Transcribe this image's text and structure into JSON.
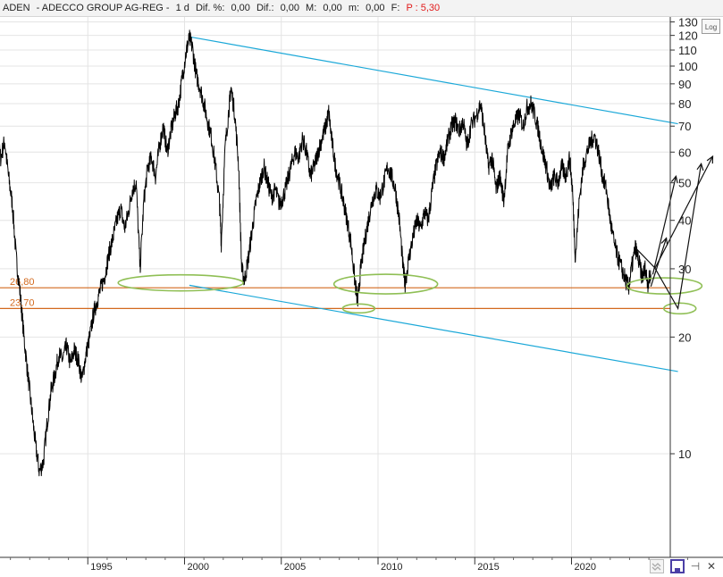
{
  "header": {
    "symbol": "ADEN",
    "name": "- ADECCO GROUP AG-REG -",
    "period": "1 d",
    "pct_change_label": "Dif. %:",
    "pct_change_value": "0,00",
    "change_label": "Dif.:",
    "change_value": "0,00",
    "max_label": "M:",
    "max_value": "0,00",
    "min_label": "m:",
    "min_value": "0,00",
    "f_label": "F:",
    "price_text": "P : 5,30"
  },
  "toolbar": {
    "log_label": "Log"
  },
  "bottom_tools": {
    "zoom_icon": "zoom-icon",
    "save_icon": "save-icon",
    "pin_icon": "pin-icon",
    "close_icon": "close-icon"
  },
  "colors": {
    "price": "#000000",
    "trendline": "#1ba8d8",
    "support": "#d2691e",
    "ellipse": "#8fbf55",
    "label_bg": "#ffffff",
    "grid": "#e4e4e4"
  },
  "chart_data": {
    "type": "line",
    "y_scale": "log",
    "y_ticks": [
      10,
      20,
      30,
      40,
      50,
      60,
      70,
      80,
      90,
      100,
      110,
      120,
      130
    ],
    "x_ticks": [
      "1995",
      "2000",
      "2005",
      "2010",
      "2015",
      "2020"
    ],
    "grid": true,
    "series": [
      {
        "points": [
          [
            1989.9,
            68
          ],
          [
            1990.1,
            62
          ],
          [
            1990.3,
            65
          ],
          [
            1990.5,
            58
          ],
          [
            1990.7,
            64
          ],
          [
            1990.9,
            52
          ],
          [
            1991.1,
            44
          ],
          [
            1991.3,
            32
          ],
          [
            1991.5,
            26
          ],
          [
            1991.7,
            20
          ],
          [
            1991.9,
            16
          ],
          [
            1992.1,
            13
          ],
          [
            1992.3,
            10.5
          ],
          [
            1992.5,
            9
          ],
          [
            1992.7,
            9.5
          ],
          [
            1992.9,
            12
          ],
          [
            1993.1,
            14.5
          ],
          [
            1993.3,
            16
          ],
          [
            1993.5,
            18
          ],
          [
            1993.7,
            17.5
          ],
          [
            1993.9,
            19
          ],
          [
            1994.1,
            17
          ],
          [
            1994.3,
            18.5
          ],
          [
            1994.5,
            17.5
          ],
          [
            1994.7,
            15.5
          ],
          [
            1994.9,
            18
          ],
          [
            1995.1,
            20
          ],
          [
            1995.3,
            23
          ],
          [
            1995.5,
            25
          ],
          [
            1995.7,
            27
          ],
          [
            1995.9,
            29
          ],
          [
            1996.1,
            33
          ],
          [
            1996.3,
            36
          ],
          [
            1996.5,
            40
          ],
          [
            1996.7,
            43
          ],
          [
            1996.9,
            38
          ],
          [
            1997.1,
            42
          ],
          [
            1997.3,
            48
          ],
          [
            1997.5,
            50
          ],
          [
            1997.7,
            30
          ],
          [
            1997.9,
            45
          ],
          [
            1998.1,
            55
          ],
          [
            1998.3,
            58
          ],
          [
            1998.5,
            52
          ],
          [
            1998.7,
            62
          ],
          [
            1998.9,
            70
          ],
          [
            1999.1,
            60
          ],
          [
            1999.3,
            68
          ],
          [
            1999.5,
            75
          ],
          [
            1999.7,
            80
          ],
          [
            1999.9,
            95
          ],
          [
            2000.1,
            110
          ],
          [
            2000.25,
            118
          ],
          [
            2000.4,
            112
          ],
          [
            2000.6,
            95
          ],
          [
            2000.8,
            88
          ],
          [
            2001.0,
            80
          ],
          [
            2001.2,
            72
          ],
          [
            2001.4,
            65
          ],
          [
            2001.6,
            55
          ],
          [
            2001.8,
            45
          ],
          [
            2001.9,
            35
          ],
          [
            2002.1,
            62
          ],
          [
            2002.3,
            78
          ],
          [
            2002.4,
            88
          ],
          [
            2002.6,
            75
          ],
          [
            2002.8,
            55
          ],
          [
            2002.95,
            30
          ],
          [
            2003.1,
            28
          ],
          [
            2003.3,
            32
          ],
          [
            2003.5,
            38
          ],
          [
            2003.7,
            45
          ],
          [
            2003.9,
            50
          ],
          [
            2004.1,
            55
          ],
          [
            2004.3,
            50
          ],
          [
            2004.5,
            46
          ],
          [
            2004.7,
            48
          ],
          [
            2004.9,
            44
          ],
          [
            2005.1,
            46
          ],
          [
            2005.3,
            50
          ],
          [
            2005.5,
            55
          ],
          [
            2005.7,
            60
          ],
          [
            2005.9,
            58
          ],
          [
            2006.1,
            65
          ],
          [
            2006.3,
            60
          ],
          [
            2006.5,
            52
          ],
          [
            2006.7,
            55
          ],
          [
            2006.9,
            60
          ],
          [
            2007.1,
            65
          ],
          [
            2007.3,
            70
          ],
          [
            2007.45,
            76
          ],
          [
            2007.6,
            65
          ],
          [
            2007.8,
            55
          ],
          [
            2008.0,
            50
          ],
          [
            2008.2,
            45
          ],
          [
            2008.4,
            40
          ],
          [
            2008.6,
            35
          ],
          [
            2008.8,
            28
          ],
          [
            2008.95,
            24.5
          ],
          [
            2009.1,
            30
          ],
          [
            2009.3,
            35
          ],
          [
            2009.5,
            40
          ],
          [
            2009.7,
            45
          ],
          [
            2009.9,
            48
          ],
          [
            2010.1,
            46
          ],
          [
            2010.3,
            50
          ],
          [
            2010.5,
            55
          ],
          [
            2010.7,
            52
          ],
          [
            2010.9,
            48
          ],
          [
            2011.1,
            40
          ],
          [
            2011.3,
            30
          ],
          [
            2011.4,
            27.5
          ],
          [
            2011.6,
            32
          ],
          [
            2011.8,
            36
          ],
          [
            2012.0,
            40
          ],
          [
            2012.2,
            38
          ],
          [
            2012.4,
            42
          ],
          [
            2012.6,
            40
          ],
          [
            2012.8,
            48
          ],
          [
            2013.0,
            55
          ],
          [
            2013.2,
            60
          ],
          [
            2013.4,
            58
          ],
          [
            2013.6,
            64
          ],
          [
            2013.8,
            70
          ],
          [
            2014.0,
            72
          ],
          [
            2014.2,
            68
          ],
          [
            2014.4,
            72
          ],
          [
            2014.6,
            62
          ],
          [
            2014.8,
            70
          ],
          [
            2015.1,
            75
          ],
          [
            2015.3,
            80
          ],
          [
            2015.5,
            68
          ],
          [
            2015.7,
            55
          ],
          [
            2015.9,
            58
          ],
          [
            2016.1,
            48
          ],
          [
            2016.3,
            52
          ],
          [
            2016.5,
            45
          ],
          [
            2016.7,
            60
          ],
          [
            2016.9,
            68
          ],
          [
            2017.1,
            72
          ],
          [
            2017.3,
            75
          ],
          [
            2017.5,
            70
          ],
          [
            2017.7,
            78
          ],
          [
            2017.9,
            80
          ],
          [
            2018.1,
            75
          ],
          [
            2018.3,
            68
          ],
          [
            2018.5,
            60
          ],
          [
            2018.7,
            55
          ],
          [
            2018.9,
            48
          ],
          [
            2019.1,
            52
          ],
          [
            2019.3,
            50
          ],
          [
            2019.5,
            55
          ],
          [
            2019.7,
            52
          ],
          [
            2019.9,
            58
          ],
          [
            2020.05,
            48
          ],
          [
            2020.2,
            32
          ],
          [
            2020.4,
            45
          ],
          [
            2020.6,
            55
          ],
          [
            2020.8,
            60
          ],
          [
            2021.0,
            64
          ],
          [
            2021.2,
            66
          ],
          [
            2021.4,
            60
          ],
          [
            2021.6,
            52
          ],
          [
            2021.8,
            48
          ],
          [
            2022.0,
            40
          ],
          [
            2022.2,
            35
          ],
          [
            2022.4,
            32
          ],
          [
            2022.6,
            30
          ],
          [
            2022.8,
            28
          ],
          [
            2022.95,
            26.8
          ],
          [
            2023.1,
            30
          ],
          [
            2023.3,
            34
          ],
          [
            2023.5,
            31
          ],
          [
            2023.65,
            28.5
          ],
          [
            2023.8,
            30
          ],
          [
            2023.95,
            27.5
          ],
          [
            2024.1,
            29
          ]
        ]
      }
    ],
    "support_levels": [
      {
        "label": "26,80",
        "value": 26.8
      },
      {
        "label": "23,70",
        "value": 23.7
      }
    ],
    "channel_lines": [
      {
        "from": [
          2000.25,
          119
        ],
        "to": [
          2025.5,
          71
        ]
      },
      {
        "from": [
          2000.25,
          27.2
        ],
        "to": [
          2025.5,
          16.3
        ]
      }
    ],
    "highlight_ellipses": [
      {
        "center": [
          1999.8,
          27.6
        ]
      },
      {
        "center": [
          2010.4,
          27.4
        ]
      },
      {
        "center": [
          2009.0,
          23.7
        ]
      },
      {
        "center": [
          2024.8,
          27.1
        ]
      },
      {
        "center": [
          2025.6,
          23.7
        ]
      }
    ],
    "projection_arrows": [
      {
        "points": [
          [
            2023.3,
            34
          ],
          [
            2024.3,
            30.2
          ],
          [
            2025.5,
            23.7
          ],
          [
            2026.7,
            56
          ]
        ]
      },
      {
        "points": [
          [
            2024.1,
            27
          ],
          [
            2024.9,
            36
          ]
        ]
      },
      {
        "points": [
          [
            2024.2,
            29
          ],
          [
            2025.4,
            52
          ]
        ]
      },
      {
        "points": [
          [
            2024.3,
            30
          ],
          [
            2027.3,
            58.5
          ]
        ]
      }
    ]
  }
}
